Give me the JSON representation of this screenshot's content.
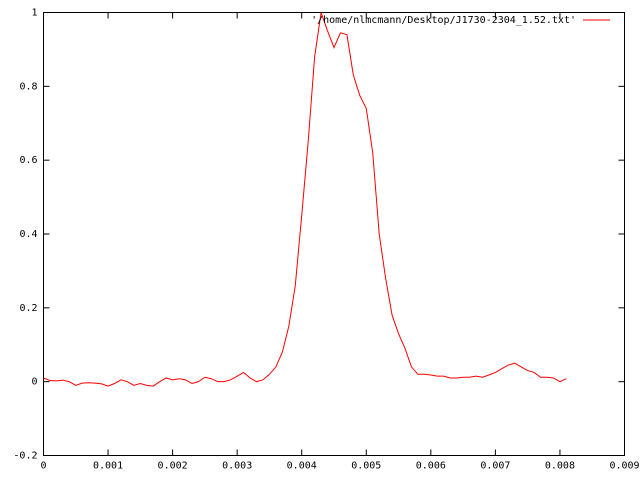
{
  "chart_data": {
    "type": "line",
    "xlim": [
      0,
      0.009
    ],
    "xticks": [
      0,
      0.001,
      0.002,
      0.003,
      0.004,
      0.005,
      0.006,
      0.007,
      0.008,
      0.009
    ],
    "ylim": [
      -0.2,
      1
    ],
    "yticks": [
      -0.2,
      0,
      0.2,
      0.4,
      0.6,
      0.8,
      1
    ],
    "grid": false,
    "legend": "top-right",
    "x": [
      0,
      0.0001,
      0.0002,
      0.0003,
      0.0004,
      0.0005,
      0.0006,
      0.0007,
      0.0008,
      0.0009,
      0.001,
      0.0011,
      0.0012,
      0.0013,
      0.0014,
      0.0015,
      0.0016,
      0.0017,
      0.0018,
      0.0019,
      0.002,
      0.0021,
      0.0022,
      0.0023,
      0.0024,
      0.0025,
      0.0026,
      0.0027,
      0.0028,
      0.0029,
      0.003,
      0.0031,
      0.0032,
      0.0033,
      0.0034,
      0.0035,
      0.0036,
      0.0037,
      0.0038,
      0.0039,
      0.004,
      0.0041,
      0.0042,
      0.0043,
      0.0044,
      0.0045,
      0.0046,
      0.0047,
      0.0048,
      0.0049,
      0.005,
      0.0051,
      0.0052,
      0.0053,
      0.0054,
      0.0055,
      0.0056,
      0.0057,
      0.0058,
      0.0059,
      0.006,
      0.0061,
      0.0062,
      0.0063,
      0.0064,
      0.0065,
      0.0066,
      0.0067,
      0.0068,
      0.0069,
      0.007,
      0.0071,
      0.0072,
      0.0073,
      0.0074,
      0.0075,
      0.0076,
      0.0077,
      0.0078,
      0.0079,
      0.008,
      0.0081
    ],
    "series": [
      {
        "name": "'/home/nlmcmann/Desktop/J1730-2304_1.52.txt'",
        "color": "#ff0000",
        "values": [
          0.01,
          0.003,
          0.002,
          0.004,
          0.0,
          -0.01,
          -0.004,
          -0.003,
          -0.004,
          -0.006,
          -0.012,
          -0.005,
          0.005,
          0.0,
          -0.01,
          -0.005,
          -0.01,
          -0.012,
          0.0,
          0.01,
          0.005,
          0.008,
          0.005,
          -0.005,
          0.0,
          0.012,
          0.008,
          0.0,
          0.0,
          0.005,
          0.015,
          0.025,
          0.01,
          0.0,
          0.005,
          0.02,
          0.04,
          0.08,
          0.15,
          0.26,
          0.45,
          0.65,
          0.88,
          1.0,
          0.95,
          0.905,
          0.945,
          0.94,
          0.83,
          0.775,
          0.74,
          0.62,
          0.4,
          0.28,
          0.18,
          0.13,
          0.09,
          0.04,
          0.02,
          0.02,
          0.018,
          0.015,
          0.015,
          0.01,
          0.01,
          0.012,
          0.012,
          0.015,
          0.012,
          0.018,
          0.025,
          0.035,
          0.045,
          0.05,
          0.04,
          0.03,
          0.025,
          0.012,
          0.012,
          0.01,
          0.0,
          0.008
        ]
      }
    ]
  }
}
